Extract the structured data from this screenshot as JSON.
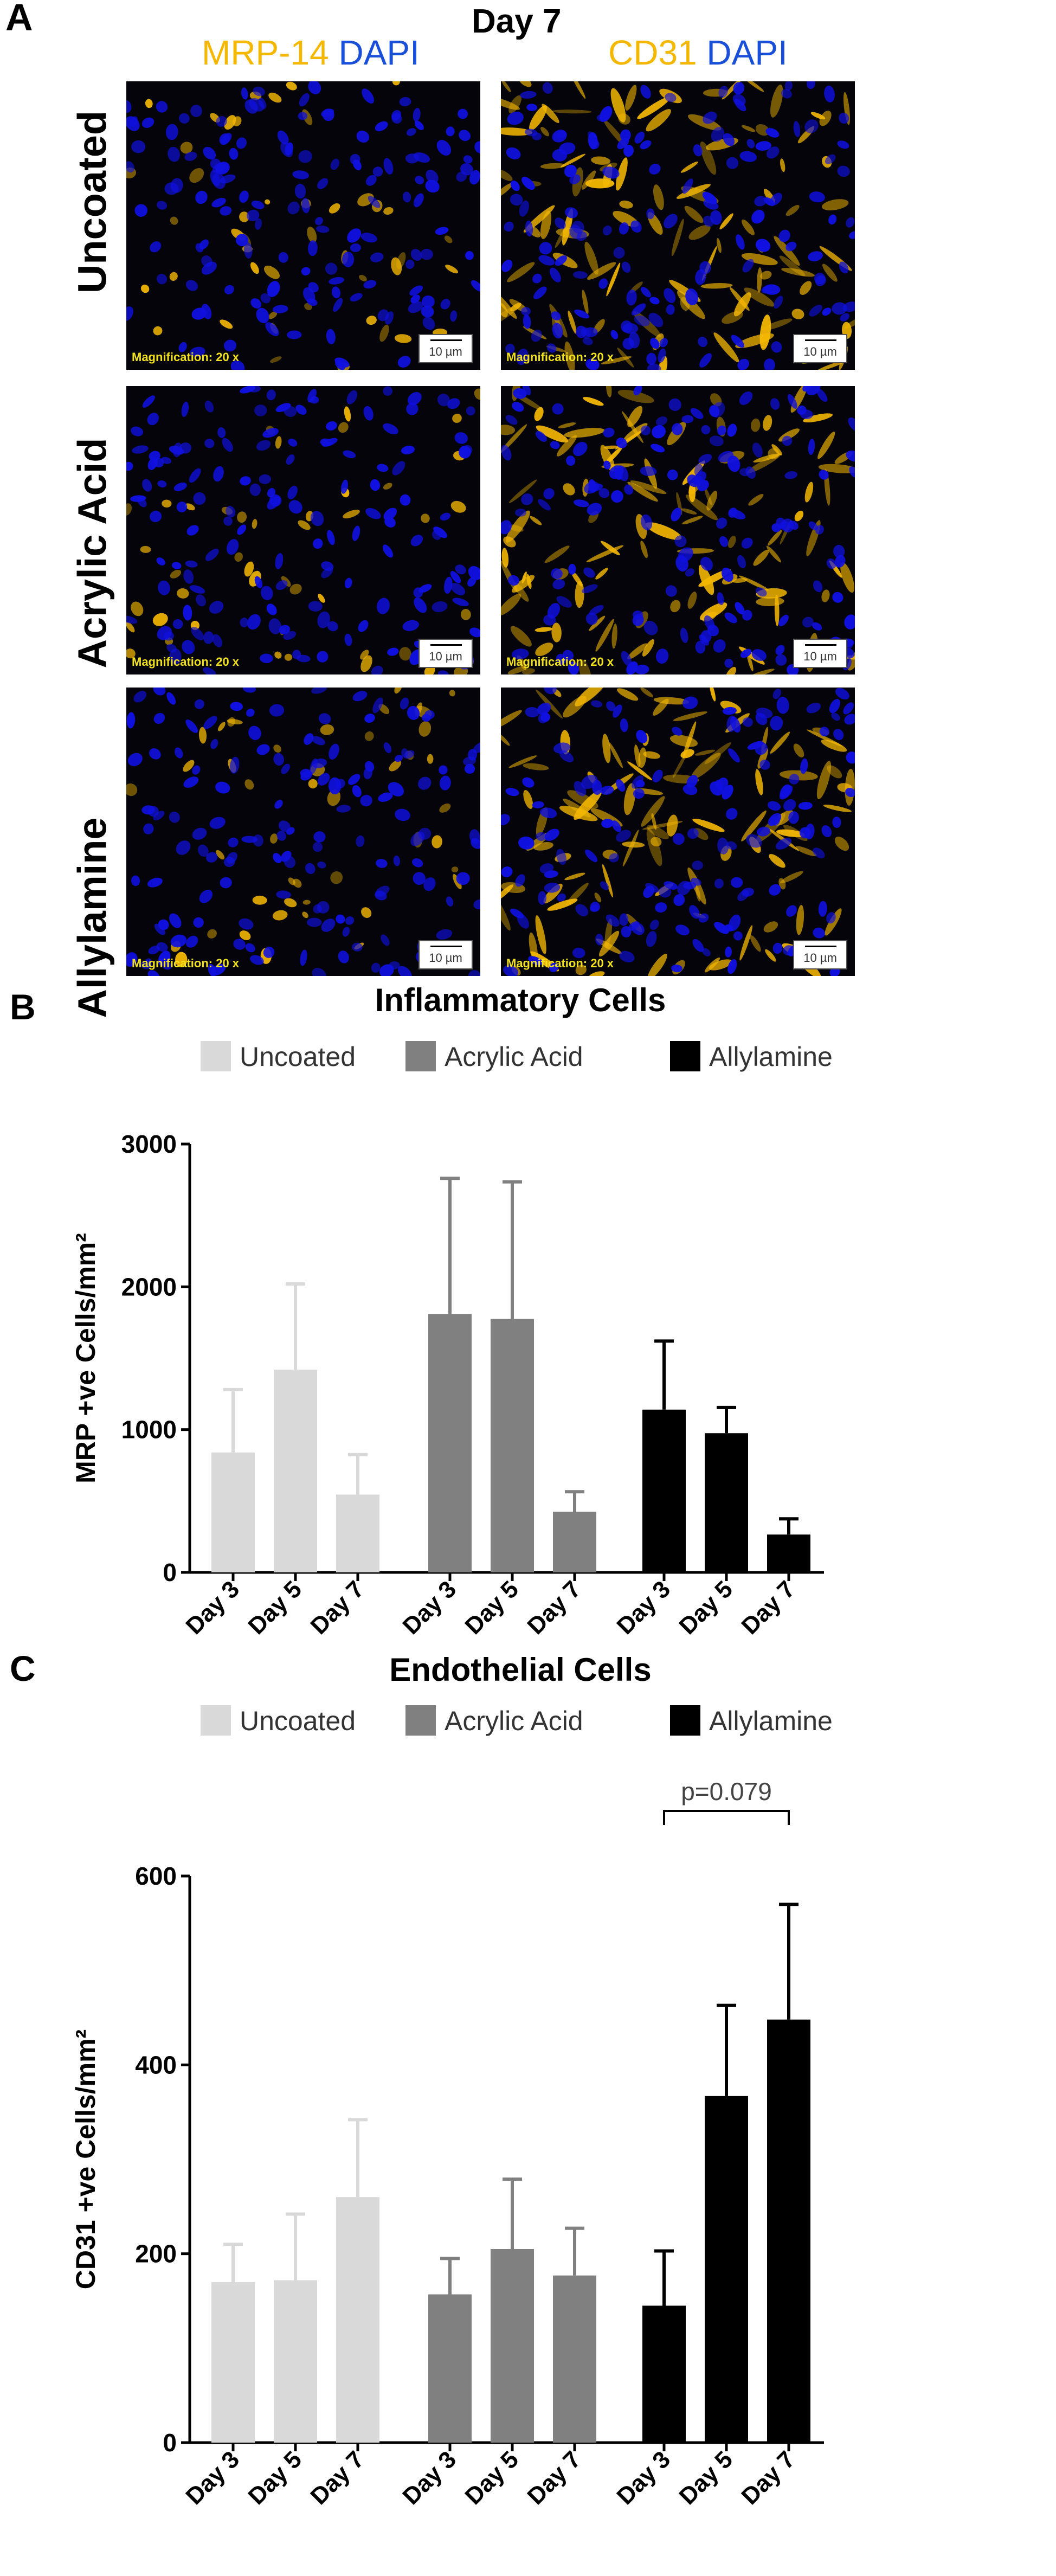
{
  "panel_a": {
    "letter": "A",
    "title": "Day 7",
    "columns": [
      {
        "stain": "MRP-14",
        "counterstain": "DAPI"
      },
      {
        "stain": "CD31",
        "counterstain": "DAPI"
      }
    ],
    "rows": [
      "Uncoated",
      "Acrylic Acid",
      "Allylamine"
    ],
    "magnification_text": "Magnification: 20 x",
    "scale_bar_text": "10 µm",
    "colors": {
      "stain": "#f5b800",
      "dapi": "#1a4fd8",
      "nuclei": "#1010e0",
      "magnification": "#f0e020"
    }
  },
  "chart_data": [
    {
      "type": "bar",
      "panel_letter": "B",
      "title": "Inflammatory Cells",
      "ylabel": "MRP +ve Cells/mm²",
      "ylim": [
        0,
        3000
      ],
      "yticks": [
        "0",
        "1000",
        "2000",
        "3000"
      ],
      "categories": [
        "Day 3",
        "Day 5",
        "Day 7"
      ],
      "series": [
        {
          "name": "Uncoated",
          "color": "#d9d9d9",
          "values": [
            840,
            1420,
            545
          ],
          "errors": [
            440,
            600,
            280
          ]
        },
        {
          "name": "Acrylic Acid",
          "color": "#808080",
          "values": [
            1810,
            1775,
            425
          ],
          "errors": [
            950,
            960,
            140
          ]
        },
        {
          "name": "Allylamine",
          "color": "#000000",
          "values": [
            1140,
            975,
            265
          ],
          "errors": [
            480,
            180,
            110
          ]
        }
      ],
      "legend": "top"
    },
    {
      "type": "bar",
      "panel_letter": "C",
      "title": "Endothelial Cells",
      "ylabel": "CD31 +ve Cells/mm²",
      "ylim": [
        0,
        600
      ],
      "yticks": [
        "0",
        "200",
        "400",
        "600"
      ],
      "categories": [
        "Day 3",
        "Day 5",
        "Day 7"
      ],
      "series": [
        {
          "name": "Uncoated",
          "color": "#d9d9d9",
          "values": [
            170,
            172,
            260
          ],
          "errors": [
            40,
            70,
            82
          ]
        },
        {
          "name": "Acrylic Acid",
          "color": "#808080",
          "values": [
            157,
            205,
            177
          ],
          "errors": [
            38,
            74,
            50
          ]
        },
        {
          "name": "Allylamine",
          "color": "#000000",
          "values": [
            145,
            367,
            448
          ],
          "errors": [
            58,
            96,
            122
          ]
        }
      ],
      "annotation": "p=0.079",
      "legend": "top"
    }
  ]
}
